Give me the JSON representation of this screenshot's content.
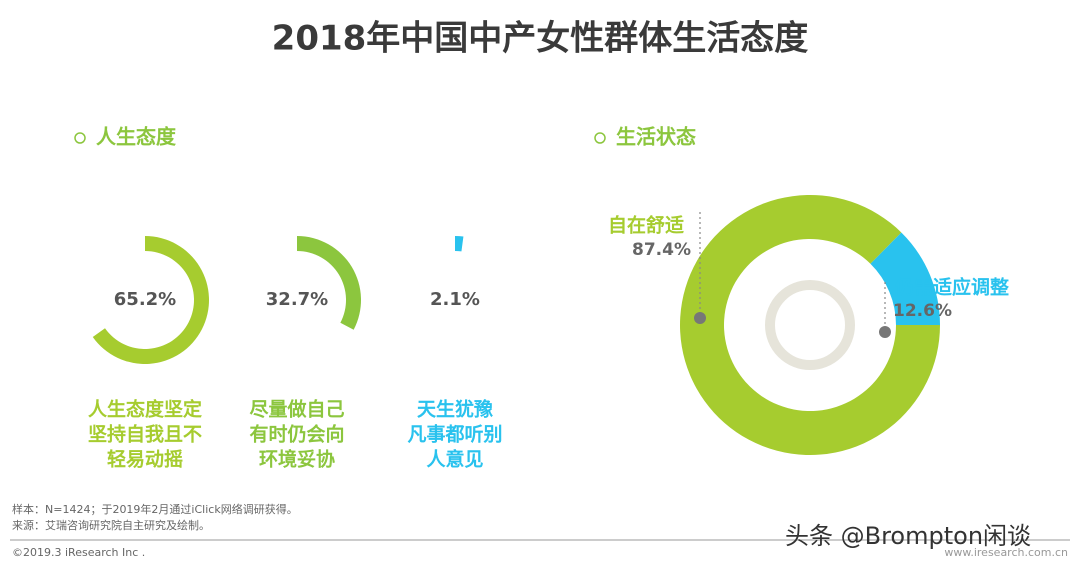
{
  "title": "2018年中国中产女性群体生活态度",
  "chart_data": [
    {
      "type": "donut-set",
      "title": "人生态度",
      "categories": [
        [
          "人生态度坚定",
          "坚持自我且不",
          "轻易动摇"
        ],
        [
          "尽量做自己",
          "有时仍会向",
          "环境妥协"
        ],
        [
          "天生犹豫",
          "凡事都听别",
          "人意见"
        ]
      ],
      "values": [
        65.2,
        32.7,
        2.1
      ],
      "value_labels": [
        "65.2%",
        "32.7%",
        "2.1%"
      ],
      "colors": [
        "#a6cc2f",
        "#8cc63e",
        "#29c2ee"
      ]
    },
    {
      "type": "donut",
      "title": "生活状态",
      "categories": [
        "自在舒适",
        "仍需适应调整"
      ],
      "values": [
        87.4,
        12.6
      ],
      "value_labels": [
        "87.4%",
        "12.6%"
      ],
      "colors": [
        "#a6cc2f",
        "#29c2ee"
      ]
    }
  ],
  "footer": {
    "notes": [
      "样本：N=1424；于2019年2月通过iClick网络调研获得。",
      "来源：艾瑞咨询研究院自主研究及绘制。"
    ],
    "copyright": "©2019.3 iResearch Inc .",
    "watermark": "头条 @Brompton闲谈",
    "website": "www.iresearch.com.cn"
  }
}
